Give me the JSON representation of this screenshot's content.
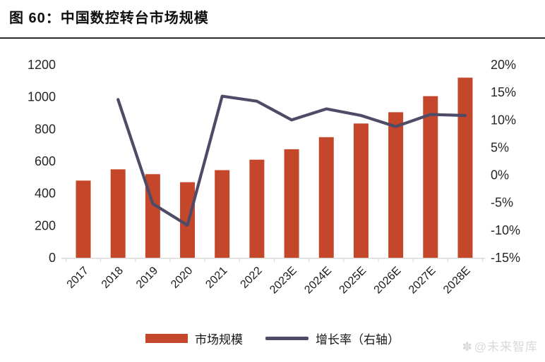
{
  "figure": {
    "title": "图 60：中国数控转台市场规模",
    "watermark_icon": "✽",
    "watermark_text": "@未来智库"
  },
  "legend": {
    "items": [
      {
        "label": "市场规模",
        "marker": "bar-swatch"
      },
      {
        "label": "增长率（右轴）",
        "marker": "line-swatch"
      }
    ]
  },
  "colors": {
    "bar": "#C5472B",
    "line": "#4E4B66",
    "axis_text": "#262626",
    "category_text": "#1a1a1a",
    "baseline": "#d8d8d8",
    "watermark": "#d9d9d9"
  },
  "chart_data": {
    "type": "bar",
    "title": "中国数控转台市场规模",
    "categories": [
      "2017",
      "2018",
      "2019",
      "2020",
      "2021",
      "2022",
      "2023E",
      "2024E",
      "2025E",
      "2026E",
      "2027E",
      "2028E"
    ],
    "series": [
      {
        "name": "市场规模",
        "type": "bar",
        "axis": "left",
        "values": [
          480,
          550,
          520,
          470,
          545,
          610,
          675,
          750,
          835,
          905,
          1005,
          1120
        ]
      },
      {
        "name": "增长率（右轴）",
        "type": "line",
        "axis": "right",
        "values": [
          null,
          13.7,
          -5.2,
          -9.1,
          14.3,
          13.4,
          10.0,
          12.0,
          10.8,
          8.8,
          11.0,
          10.8
        ]
      }
    ],
    "left_axis": {
      "min": 0,
      "max": 1200,
      "step": 200,
      "ticks": [
        "0",
        "200",
        "400",
        "600",
        "800",
        "1000",
        "1200"
      ]
    },
    "right_axis": {
      "min": -15,
      "max": 20,
      "step": 5,
      "ticks": [
        "-15%",
        "-10%",
        "-5%",
        "0%",
        "5%",
        "10%",
        "15%",
        "20%"
      ]
    },
    "grid": false,
    "legend_position": "bottom",
    "xlabel": "",
    "ylabel": ""
  }
}
